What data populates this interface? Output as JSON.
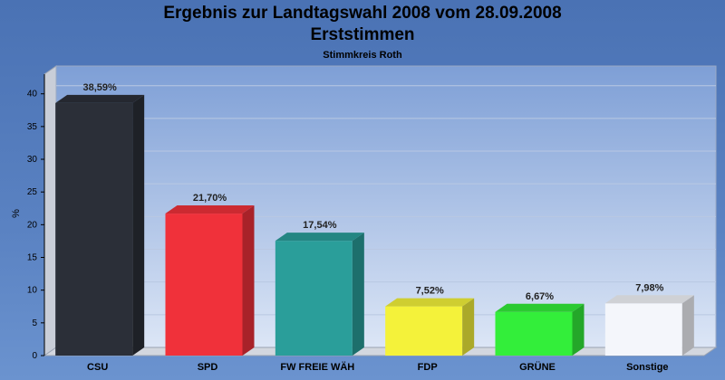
{
  "header": {
    "title_line1": "Ergebnis zur Landtagswahl 2008 vom 28.09.2008",
    "title_line2": "Erststimmen",
    "subtitle": "Stimmkreis Roth"
  },
  "chart_data": {
    "type": "bar",
    "title": "Ergebnis zur Landtagswahl 2008 vom 28.09.2008 Erststimmen",
    "subtitle": "Stimmkreis Roth",
    "xlabel": "",
    "ylabel": "%",
    "ylim": [
      0,
      43
    ],
    "yticks": [
      0,
      5,
      10,
      15,
      20,
      25,
      30,
      35,
      40
    ],
    "grid": true,
    "categories": [
      "CSU",
      "SPD",
      "FW FREIE WÄH",
      "FDP",
      "GRÜNE",
      "Sonstige"
    ],
    "values": [
      38.59,
      21.7,
      17.54,
      7.52,
      6.67,
      7.98
    ],
    "value_labels": [
      "38,59%",
      "21,70%",
      "17,54%",
      "7,52%",
      "6,67%",
      "7,98%"
    ],
    "colors": [
      "#2b2f38",
      "#f0313a",
      "#2a9e9a",
      "#f4f23a",
      "#33ee3a",
      "#f4f6fb"
    ]
  }
}
